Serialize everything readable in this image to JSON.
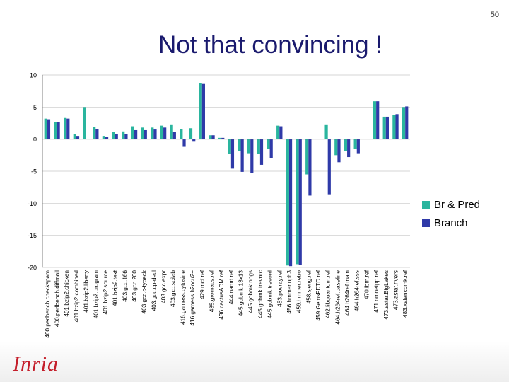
{
  "slide": {
    "page_number": "50",
    "title": "Not that convincing !",
    "logo_text": "Inria"
  },
  "colors": {
    "br_pred": "#2ab59e",
    "branch": "#2f3aa8",
    "title": "#1a1a6e",
    "logo": "#c41e2a"
  },
  "chart_data": {
    "type": "bar",
    "title": "",
    "xlabel": "",
    "ylabel": "",
    "ylim": [
      -20,
      10
    ],
    "yticks": [
      10,
      5,
      0,
      -5,
      -10,
      -15,
      -20
    ],
    "legend_position": "right",
    "categories": [
      "400.perlbench.checkspam",
      "400.perlbench.diffmail",
      "401.bzip2.chicken",
      "401.bzip2.combined",
      "401.bzip2.liberty",
      "401.bzip2.program",
      "401.bzip2.source",
      "401.bzip2.text",
      "403.gcc.166",
      "403.gcc.200",
      "403.gcc.c-typeck",
      "403.gcc.cp-decl",
      "403.gcc.expr",
      "403.gcc.scilab",
      "416.gamess.cytosine",
      "416.gamess.h2ocu2+",
      "429.mcf.ref",
      "435.gromacs.ref",
      "436.cactusADM.ref",
      "444.namd.ref",
      "445.gobmk.13x13",
      "445.gobmk.nngs",
      "445.gobmk.trevorc",
      "445.gobmk.trevord",
      "453.povray.ref",
      "456.hmmer.nph3",
      "456.hmmer.retro",
      "458.sjeng.ref",
      "459.GemsFDTD.ref",
      "462.libquantum.ref",
      "464.h264ref.baseline",
      "464.h264ref.main",
      "464.h264ref.sss",
      "470.lbm.ref",
      "471.omnetpp.ref",
      "473.astar.BigLakes",
      "473.astar.rivers",
      "483.xalancbmk.ref"
    ],
    "series": [
      {
        "name": "Br & Pred",
        "values": [
          3.2,
          2.7,
          3.3,
          0.8,
          5.0,
          1.9,
          0.5,
          1.1,
          1.2,
          2.0,
          1.8,
          1.8,
          2.1,
          2.3,
          1.6,
          1.7,
          8.7,
          0.6,
          0.2,
          -2.3,
          -1.8,
          -2.2,
          -2.3,
          -1.5,
          2.1,
          -19.7,
          -19.5,
          -5.5,
          0.0,
          2.3,
          -2.5,
          -1.9,
          -1.5,
          0.0,
          5.9,
          3.5,
          3.8,
          5.0
        ]
      },
      {
        "name": "Branch",
        "values": [
          3.1,
          2.7,
          3.2,
          0.5,
          0.0,
          1.6,
          0.3,
          0.8,
          0.8,
          1.4,
          1.4,
          1.5,
          1.8,
          1.1,
          -1.2,
          -0.4,
          8.6,
          0.6,
          0.2,
          -4.6,
          -5.1,
          -5.3,
          -4.0,
          -3.0,
          2.0,
          -19.8,
          -19.6,
          -8.8,
          0.0,
          -8.6,
          -3.6,
          -2.8,
          -2.2,
          0.0,
          5.9,
          3.5,
          3.9,
          5.1
        ]
      }
    ]
  }
}
